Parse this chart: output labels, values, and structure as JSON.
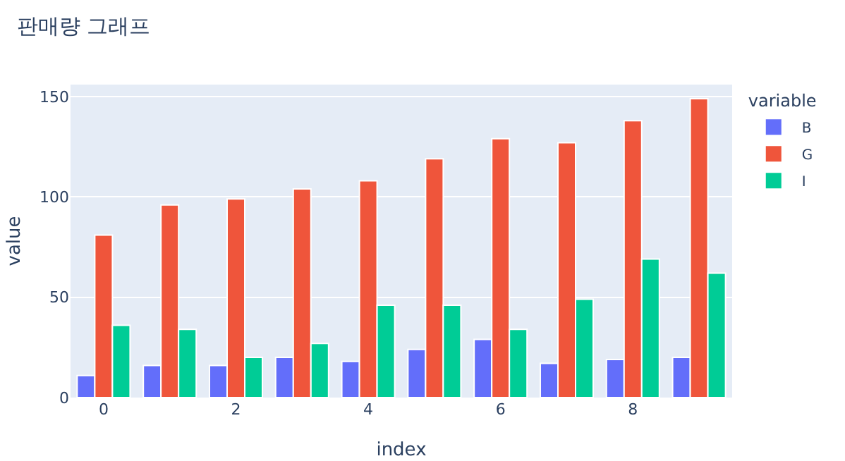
{
  "chart_data": {
    "type": "bar",
    "title": "판매량 그래프",
    "xlabel": "index",
    "ylabel": "value",
    "legend_title": "variable",
    "x": [
      0,
      1,
      2,
      3,
      4,
      5,
      6,
      7,
      8,
      9
    ],
    "series": [
      {
        "name": "B",
        "color": "#636efa",
        "values": [
          11,
          16,
          16,
          20,
          18,
          24,
          29,
          17,
          19,
          20
        ]
      },
      {
        "name": "G",
        "color": "#ef553b",
        "values": [
          81,
          96,
          99,
          104,
          108,
          119,
          129,
          127,
          138,
          149
        ]
      },
      {
        "name": "I",
        "color": "#00cc96",
        "values": [
          36,
          34,
          20,
          27,
          46,
          46,
          34,
          49,
          69,
          62
        ]
      }
    ],
    "xlim": [
      -0.5,
      9.5
    ],
    "xticks": [
      0,
      2,
      4,
      6,
      8
    ],
    "ylim": [
      0,
      156
    ],
    "yticks": [
      0,
      50,
      100,
      150
    ],
    "grid": "y",
    "legend": "top right"
  }
}
